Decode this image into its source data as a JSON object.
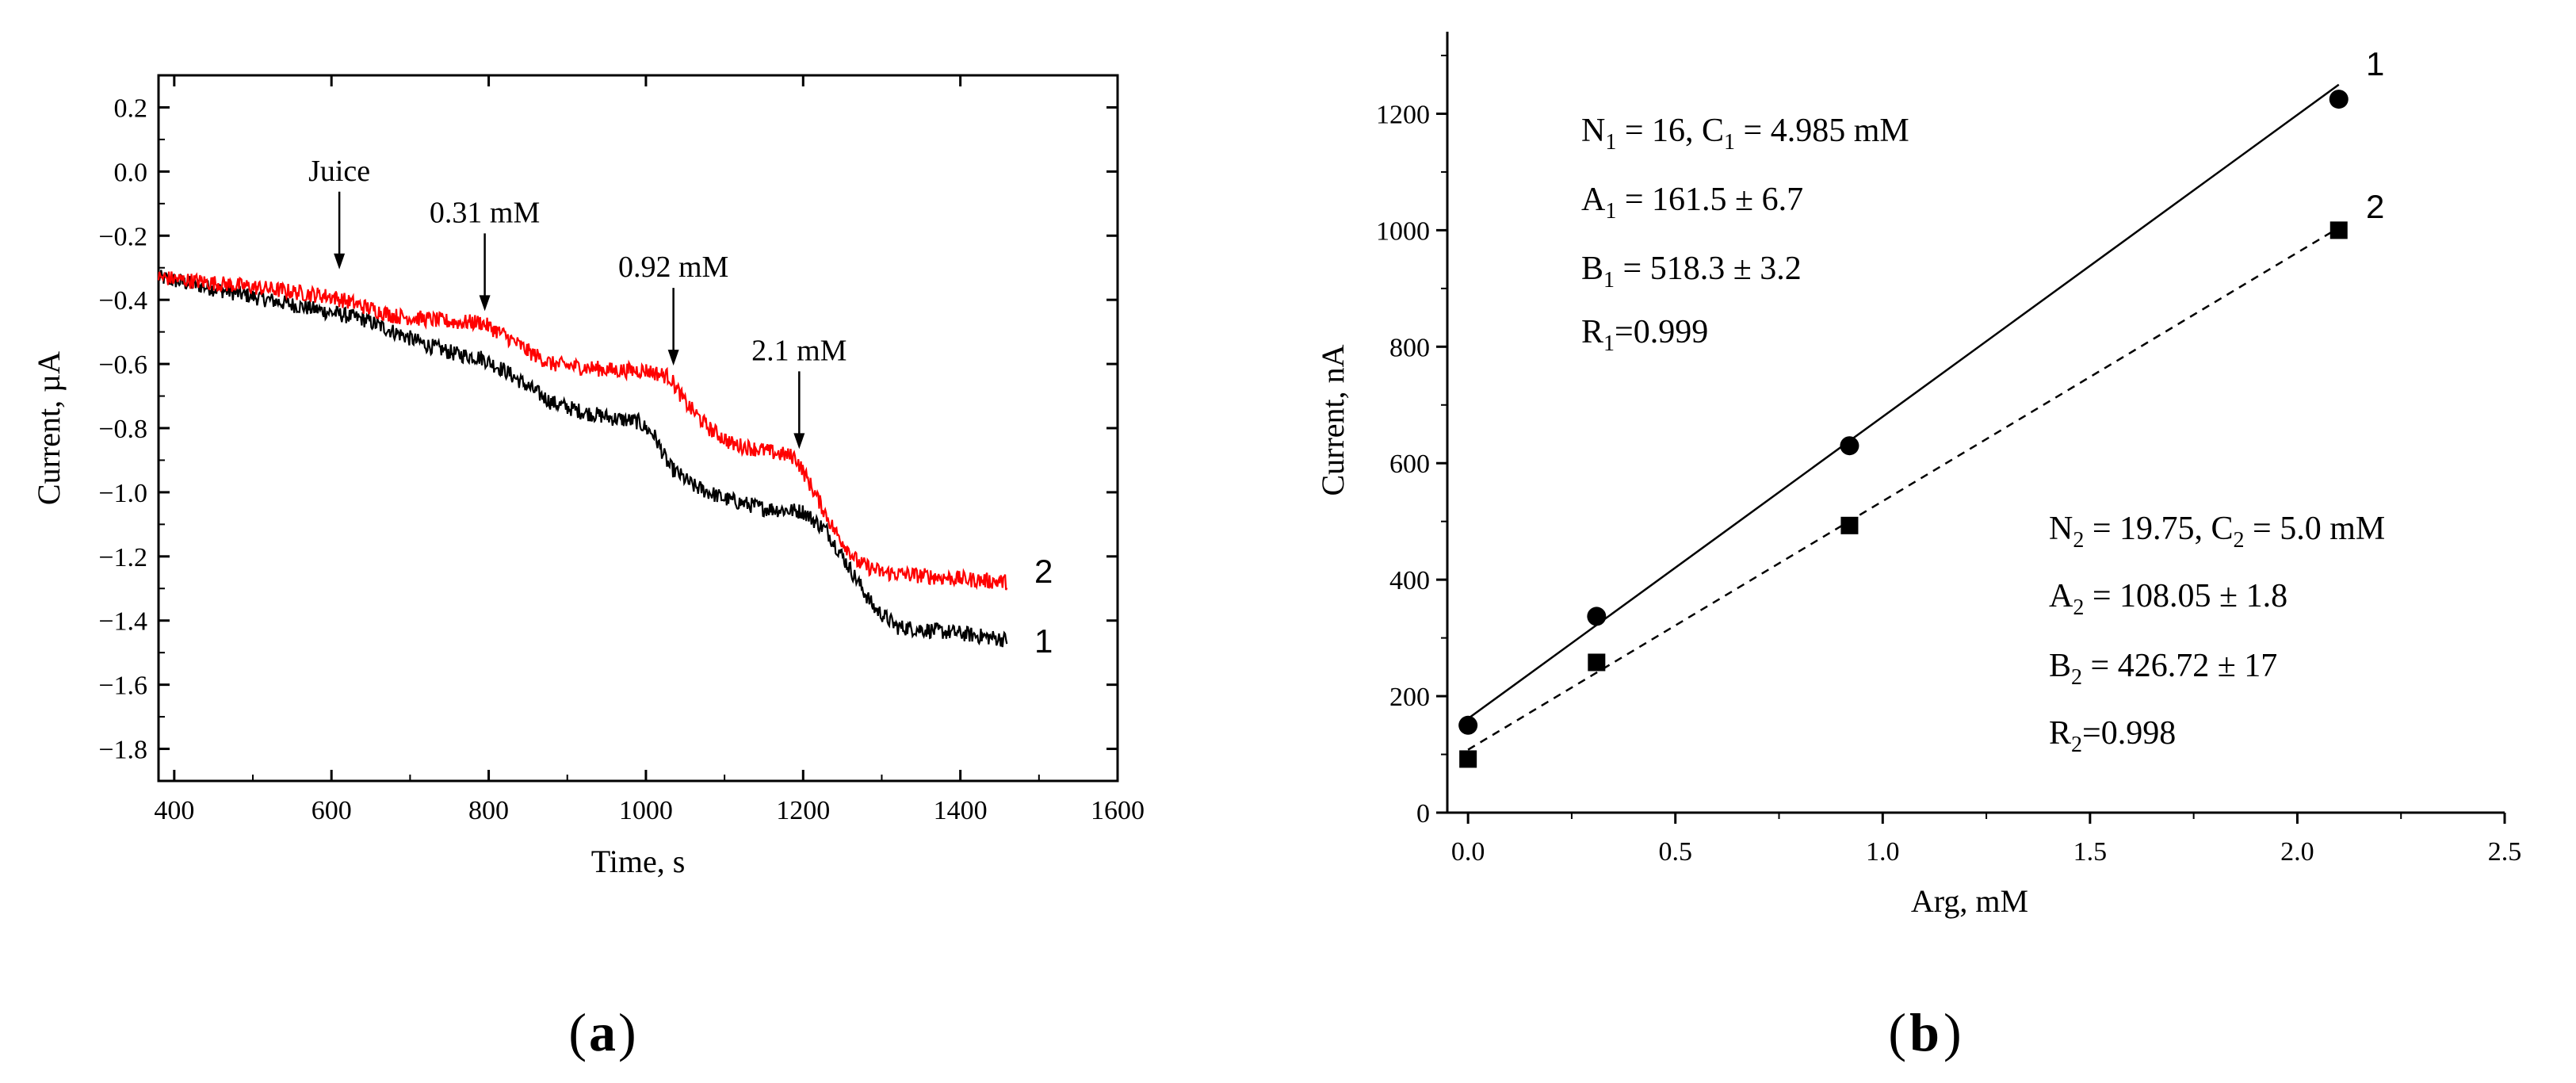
{
  "panels": [
    {
      "tag": "a",
      "tag_left": "(",
      "tag_right": ")"
    },
    {
      "tag": "b",
      "tag_left": "(",
      "tag_right": ")"
    }
  ],
  "chart_data": [
    {
      "type": "line",
      "title": "",
      "xlabel": "Time, s",
      "ylabel": "Current, µA",
      "xlim": [
        380,
        1600
      ],
      "ylim": [
        -1.9,
        0.3
      ],
      "xticks": [
        400,
        600,
        800,
        1000,
        1200,
        1400,
        1600
      ],
      "xtick_labels": [
        "400",
        "600",
        "800",
        "1000",
        "1200",
        "1400",
        "1600"
      ],
      "yticks": [
        0.2,
        0.0,
        -0.2,
        -0.4,
        -0.6,
        -0.8,
        -1.0,
        -1.2,
        -1.4,
        -1.6,
        -1.8
      ],
      "ytick_labels": [
        "0.2",
        "0.0",
        "−0.2",
        "−0.4",
        "−0.6",
        "−0.8",
        "−1.0",
        "−1.2",
        "−1.4",
        "−1.6",
        "−1.8"
      ],
      "series": [
        {
          "name": "1",
          "color": "#000000",
          "x": [
            380,
            500,
            600,
            640,
            680,
            720,
            760,
            790,
            820,
            850,
            880,
            920,
            960,
            990,
            1010,
            1030,
            1060,
            1100,
            1150,
            1200,
            1230,
            1260,
            1290,
            1320,
            1360,
            1400,
            1460
          ],
          "y": [
            -0.33,
            -0.39,
            -0.44,
            -0.46,
            -0.5,
            -0.54,
            -0.57,
            -0.58,
            -0.62,
            -0.67,
            -0.72,
            -0.75,
            -0.77,
            -0.78,
            -0.82,
            -0.92,
            -0.98,
            -1.02,
            -1.05,
            -1.06,
            -1.12,
            -1.24,
            -1.36,
            -1.42,
            -1.43,
            -1.44,
            -1.46
          ]
        },
        {
          "name": "2",
          "color": "#ff0000",
          "x": [
            380,
            500,
            600,
            640,
            680,
            720,
            760,
            790,
            820,
            850,
            880,
            920,
            960,
            1000,
            1030,
            1050,
            1080,
            1110,
            1150,
            1190,
            1210,
            1240,
            1270,
            1300,
            1350,
            1400,
            1460
          ],
          "y": [
            -0.33,
            -0.36,
            -0.39,
            -0.42,
            -0.45,
            -0.46,
            -0.47,
            -0.47,
            -0.51,
            -0.56,
            -0.6,
            -0.61,
            -0.62,
            -0.62,
            -0.64,
            -0.72,
            -0.8,
            -0.85,
            -0.87,
            -0.89,
            -0.98,
            -1.12,
            -1.22,
            -1.25,
            -1.26,
            -1.27,
            -1.28
          ]
        }
      ],
      "annotations": [
        {
          "text": "Juice",
          "x": 610,
          "y": -0.31
        },
        {
          "text": "0.31 mM",
          "x": 795,
          "y": -0.44
        },
        {
          "text": "0.92 mM",
          "x": 1035,
          "y": -0.61
        },
        {
          "text": "2.1 mM",
          "x": 1195,
          "y": -0.87
        }
      ]
    },
    {
      "type": "scatter",
      "title": "",
      "xlabel": "Arg, mM",
      "ylabel": "Current, nA",
      "xlim": [
        -0.05,
        2.5
      ],
      "ylim": [
        0,
        1300
      ],
      "xticks": [
        0.0,
        0.5,
        1.0,
        1.5,
        2.0,
        2.5
      ],
      "xtick_labels": [
        "0.0",
        "0.5",
        "1.0",
        "1.5",
        "2.0",
        "2.5"
      ],
      "yticks": [
        0,
        200,
        400,
        600,
        800,
        1000,
        1200
      ],
      "ytick_labels": [
        "0",
        "200",
        "400",
        "600",
        "800",
        "1000",
        "1200"
      ],
      "series": [
        {
          "name": "1",
          "marker": "circle",
          "line": "solid",
          "x": [
            0.0,
            0.31,
            0.92,
            2.1
          ],
          "y": [
            150,
            337,
            630,
            1225
          ],
          "fit": {
            "slope": 518.3,
            "intercept": 161.5
          }
        },
        {
          "name": "2",
          "marker": "square",
          "line": "dashed",
          "x": [
            0.0,
            0.31,
            0.92,
            2.1
          ],
          "y": [
            92,
            258,
            493,
            1000
          ],
          "fit": {
            "slope": 426.72,
            "intercept": 108.05
          }
        }
      ],
      "stats": [
        {
          "N_label": "N",
          "N_sub": "1",
          "N_value": " = 16, ",
          "C_label": "C",
          "C_sub": "1",
          "C_value": " = 4.985 mM",
          "A_label": "A",
          "A_sub": "1",
          "A_value": " = 161.5 ± 6.7",
          "B_label": "B",
          "B_sub": "1",
          "B_value": " = 518.3 ± 3.2",
          "R_label": "R",
          "R_sub": "1",
          "R_value": "=0.999"
        },
        {
          "N_label": "N",
          "N_sub": "2",
          "N_value": " = 19.75, ",
          "C_label": "C",
          "C_sub": "2",
          "C_value": " = 5.0 mM",
          "A_label": "A",
          "A_sub": "2",
          "A_value": " = 108.05 ± 1.8",
          "B_label": "B",
          "B_sub": "2",
          "B_value": " = 426.72 ± 17",
          "R_label": "R",
          "R_sub": "2",
          "R_value": "=0.998"
        }
      ]
    }
  ]
}
